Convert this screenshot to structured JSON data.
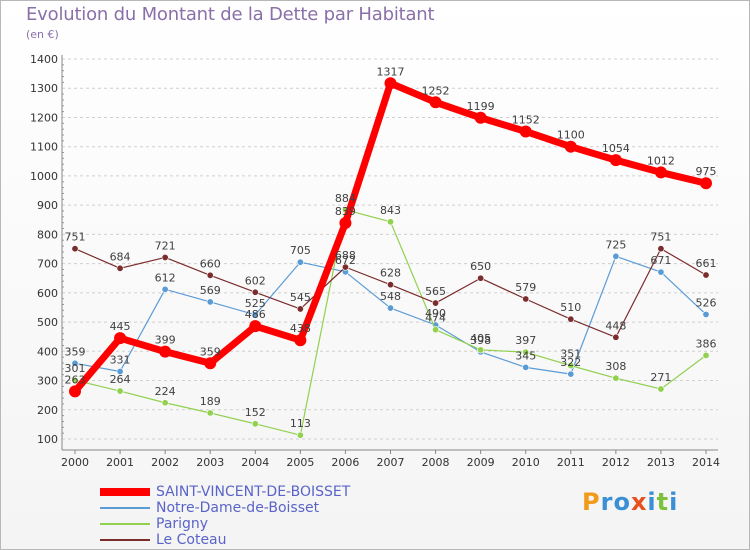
{
  "header": {
    "title": "Evolution du Montant de la Dette par Habitant",
    "subtitle": "(en €)"
  },
  "brand": {
    "text": "Proxiti",
    "letters": [
      {
        "ch": "P",
        "color": "#f29a1a"
      },
      {
        "ch": "r",
        "color": "#3b8fd4"
      },
      {
        "ch": "o",
        "color": "#3b8fd4"
      },
      {
        "ch": "x",
        "color": "#e8501e"
      },
      {
        "ch": "i",
        "color": "#3b8fd4"
      },
      {
        "ch": "t",
        "color": "#7cc23d"
      },
      {
        "ch": "i",
        "color": "#3b8fd4"
      }
    ]
  },
  "chart_data": {
    "type": "line",
    "title": "Evolution du Montant de la Dette par Habitant",
    "ylabel": "(en €)",
    "xlabel": "",
    "x": [
      "2000",
      "2001",
      "2002",
      "2003",
      "2004",
      "2005",
      "2006",
      "2007",
      "2008",
      "2009",
      "2010",
      "2011",
      "2012",
      "2013",
      "2014"
    ],
    "ylim": [
      100,
      1400
    ],
    "yticks": [
      100,
      200,
      300,
      400,
      500,
      600,
      700,
      800,
      900,
      1000,
      1100,
      1200,
      1300,
      1400
    ],
    "grid": "horizontal dashed",
    "legend_position": "bottom-left",
    "series": [
      {
        "name": "SAINT-VINCENT-DE-BOISSET",
        "color": "#ff0000",
        "values": [
          263,
          445,
          399,
          359,
          486,
          438,
          839,
          1317,
          1252,
          1199,
          1152,
          1100,
          1054,
          1012,
          975
        ]
      },
      {
        "name": "Notre-Dame-de-Boisset",
        "color": "#5b9bd5",
        "values": [
          359,
          331,
          612,
          569,
          525,
          705,
          672,
          548,
          490,
          398,
          345,
          322,
          725,
          671,
          526
        ]
      },
      {
        "name": "Parigny",
        "color": "#92d050",
        "values": [
          301,
          264,
          224,
          189,
          152,
          113,
          884,
          843,
          474,
          405,
          397,
          351,
          308,
          271,
          386
        ]
      },
      {
        "name": "Le Coteau",
        "color": "#7b2c2c",
        "values": [
          751,
          684,
          721,
          660,
          602,
          545,
          688,
          628,
          565,
          650,
          579,
          510,
          448,
          751,
          661
        ]
      }
    ]
  }
}
